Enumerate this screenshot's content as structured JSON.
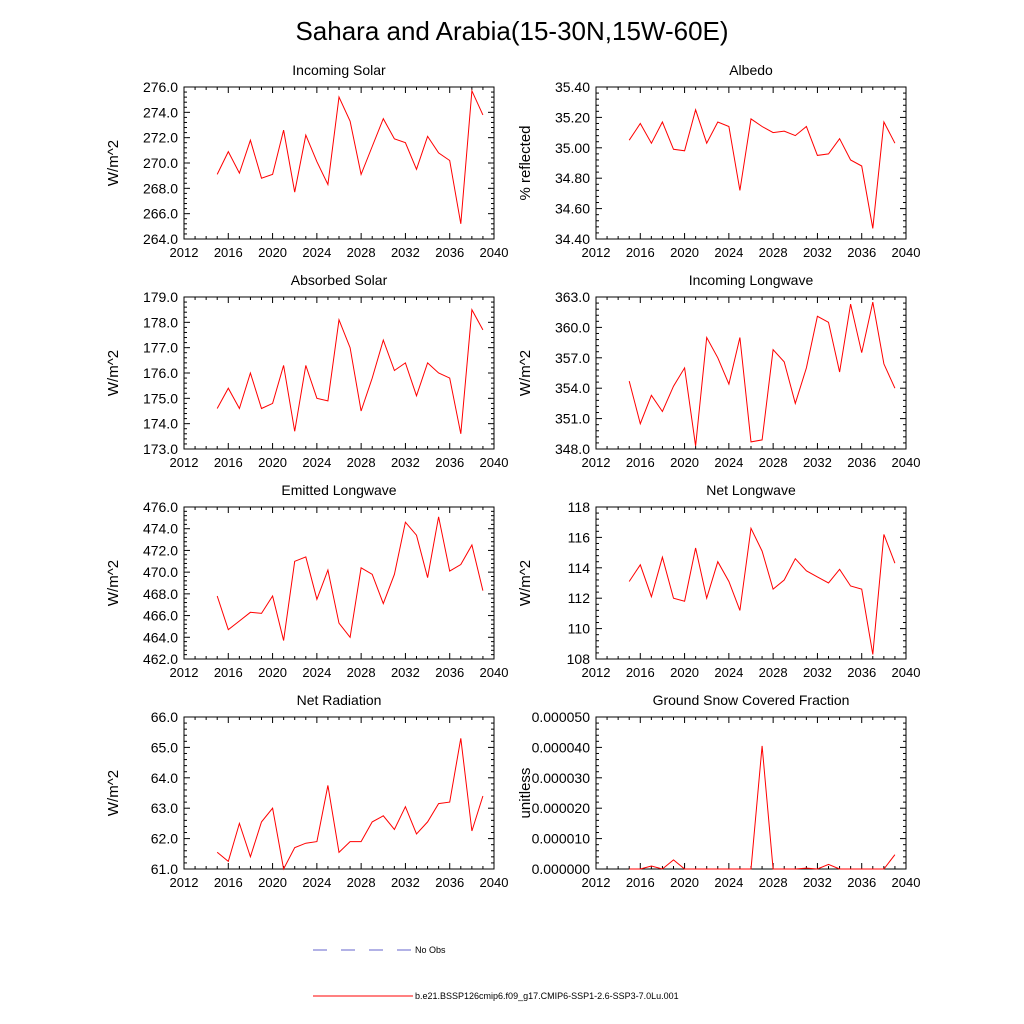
{
  "figure": {
    "title": "Sahara and Arabia(15-30N,15W-60E)"
  },
  "colors": {
    "series": "#ff0000",
    "obs": "#6666cc",
    "axis": "#000000"
  },
  "legend": [
    {
      "label": "No Obs",
      "style": "dashed"
    },
    {
      "label": "b.e21.BSSP126cmip6.f09_g17.CMIP6-SSP1-2.6-SSP3-7.0Lu.001",
      "style": "solid"
    }
  ],
  "chart_data": [
    {
      "type": "line",
      "title": "Incoming Solar",
      "ylabel": "W/m^2",
      "xlim": [
        2012,
        2040
      ],
      "ylim": [
        264,
        276
      ],
      "xticks": [
        "2012",
        "2016",
        "2020",
        "2024",
        "2028",
        "2032",
        "2036",
        "2040"
      ],
      "yticks": [
        "264.0",
        "266.0",
        "268.0",
        "270.0",
        "272.0",
        "274.0",
        "276.0"
      ],
      "x": [
        2015,
        2016,
        2017,
        2018,
        2019,
        2020,
        2021,
        2022,
        2023,
        2024,
        2025,
        2026,
        2027,
        2028,
        2029,
        2030,
        2031,
        2032,
        2033,
        2034,
        2035,
        2036,
        2037,
        2038,
        2039
      ],
      "series": [
        {
          "values": [
            269.1,
            270.9,
            269.2,
            271.8,
            268.8,
            269.1,
            272.6,
            267.7,
            272.2,
            270.1,
            268.3,
            275.2,
            273.3,
            269.1,
            271.3,
            273.5,
            271.9,
            271.6,
            269.5,
            272.1,
            270.8,
            270.2,
            265.2,
            275.7,
            273.8
          ]
        }
      ]
    },
    {
      "type": "line",
      "title": "Albedo",
      "ylabel": "% reflected",
      "xlim": [
        2012,
        2040
      ],
      "ylim": [
        34.4,
        35.4
      ],
      "xticks": [
        "2012",
        "2016",
        "2020",
        "2024",
        "2028",
        "2032",
        "2036",
        "2040"
      ],
      "yticks": [
        "34.40",
        "34.60",
        "34.80",
        "35.00",
        "35.20",
        "35.40"
      ],
      "x": [
        2015,
        2016,
        2017,
        2018,
        2019,
        2020,
        2021,
        2022,
        2023,
        2024,
        2025,
        2026,
        2027,
        2028,
        2029,
        2030,
        2031,
        2032,
        2033,
        2034,
        2035,
        2036,
        2037,
        2038,
        2039
      ],
      "series": [
        {
          "values": [
            35.05,
            35.16,
            35.03,
            35.17,
            34.99,
            34.98,
            35.25,
            35.03,
            35.17,
            35.14,
            34.72,
            35.19,
            35.14,
            35.1,
            35.11,
            35.08,
            35.14,
            34.95,
            34.96,
            35.06,
            34.92,
            34.88,
            34.47,
            35.17,
            35.03
          ]
        }
      ]
    },
    {
      "type": "line",
      "title": "Absorbed Solar",
      "ylabel": "W/m^2",
      "xlim": [
        2012,
        2040
      ],
      "ylim": [
        173,
        179
      ],
      "xticks": [
        "2012",
        "2016",
        "2020",
        "2024",
        "2028",
        "2032",
        "2036",
        "2040"
      ],
      "yticks": [
        "173.0",
        "174.0",
        "175.0",
        "176.0",
        "177.0",
        "178.0",
        "179.0"
      ],
      "x": [
        2015,
        2016,
        2017,
        2018,
        2019,
        2020,
        2021,
        2022,
        2023,
        2024,
        2025,
        2026,
        2027,
        2028,
        2029,
        2030,
        2031,
        2032,
        2033,
        2034,
        2035,
        2036,
        2037,
        2038,
        2039
      ],
      "series": [
        {
          "values": [
            174.6,
            175.4,
            174.6,
            176.0,
            174.6,
            174.8,
            176.3,
            173.7,
            176.3,
            175.0,
            174.9,
            178.1,
            177.0,
            174.5,
            175.8,
            177.3,
            176.1,
            176.4,
            175.1,
            176.4,
            176.0,
            175.8,
            173.6,
            178.5,
            177.7
          ]
        }
      ]
    },
    {
      "type": "line",
      "title": "Incoming Longwave",
      "ylabel": "W/m^2",
      "xlim": [
        2012,
        2040
      ],
      "ylim": [
        348,
        363
      ],
      "xticks": [
        "2012",
        "2016",
        "2020",
        "2024",
        "2028",
        "2032",
        "2036",
        "2040"
      ],
      "yticks": [
        "348.0",
        "351.0",
        "354.0",
        "357.0",
        "360.0",
        "363.0"
      ],
      "x": [
        2015,
        2016,
        2017,
        2018,
        2019,
        2020,
        2021,
        2022,
        2023,
        2024,
        2025,
        2026,
        2027,
        2028,
        2029,
        2030,
        2031,
        2032,
        2033,
        2034,
        2035,
        2036,
        2037,
        2038,
        2039
      ],
      "series": [
        {
          "values": [
            354.7,
            350.5,
            353.3,
            351.7,
            354.2,
            356.0,
            348.3,
            359.0,
            357.0,
            354.4,
            359.0,
            348.7,
            348.9,
            357.8,
            356.6,
            352.5,
            356.0,
            361.1,
            360.5,
            355.6,
            362.3,
            357.5,
            362.5,
            356.4,
            354.0
          ]
        }
      ]
    },
    {
      "type": "line",
      "title": "Emitted Longwave",
      "ylabel": "W/m^2",
      "xlim": [
        2012,
        2040
      ],
      "ylim": [
        462,
        476
      ],
      "xticks": [
        "2012",
        "2016",
        "2020",
        "2024",
        "2028",
        "2032",
        "2036",
        "2040"
      ],
      "yticks": [
        "462.0",
        "464.0",
        "466.0",
        "468.0",
        "470.0",
        "472.0",
        "474.0",
        "476.0"
      ],
      "x": [
        2015,
        2016,
        2017,
        2018,
        2019,
        2020,
        2021,
        2022,
        2023,
        2024,
        2025,
        2026,
        2027,
        2028,
        2029,
        2030,
        2031,
        2032,
        2033,
        2034,
        2035,
        2036,
        2037,
        2038,
        2039
      ],
      "series": [
        {
          "values": [
            467.8,
            464.7,
            465.5,
            466.3,
            466.2,
            467.8,
            463.7,
            471.0,
            471.4,
            467.5,
            470.2,
            465.3,
            464.0,
            470.4,
            469.8,
            467.1,
            469.8,
            474.6,
            473.4,
            469.5,
            475.1,
            470.1,
            470.7,
            472.5,
            468.3
          ]
        }
      ]
    },
    {
      "type": "line",
      "title": "Net Longwave",
      "ylabel": "W/m^2",
      "xlim": [
        2012,
        2040
      ],
      "ylim": [
        108,
        118
      ],
      "xticks": [
        "2012",
        "2016",
        "2020",
        "2024",
        "2028",
        "2032",
        "2036",
        "2040"
      ],
      "yticks": [
        "108",
        "110",
        "112",
        "114",
        "116",
        "118"
      ],
      "x": [
        2015,
        2016,
        2017,
        2018,
        2019,
        2020,
        2021,
        2022,
        2023,
        2024,
        2025,
        2026,
        2027,
        2028,
        2029,
        2030,
        2031,
        2032,
        2033,
        2034,
        2035,
        2036,
        2037,
        2038,
        2039
      ],
      "series": [
        {
          "values": [
            113.1,
            114.2,
            112.1,
            114.7,
            112.0,
            111.8,
            115.3,
            112.0,
            114.4,
            113.1,
            111.2,
            116.6,
            115.1,
            112.6,
            113.2,
            114.6,
            113.8,
            113.4,
            113.0,
            113.9,
            112.8,
            112.6,
            108.3,
            116.2,
            114.3
          ]
        }
      ]
    },
    {
      "type": "line",
      "title": "Net Radiation",
      "ylabel": "W/m^2",
      "xlim": [
        2012,
        2040
      ],
      "ylim": [
        61,
        66
      ],
      "xticks": [
        "2012",
        "2016",
        "2020",
        "2024",
        "2028",
        "2032",
        "2036",
        "2040"
      ],
      "yticks": [
        "61.0",
        "62.0",
        "63.0",
        "64.0",
        "65.0",
        "66.0"
      ],
      "x": [
        2015,
        2016,
        2017,
        2018,
        2019,
        2020,
        2021,
        2022,
        2023,
        2024,
        2025,
        2026,
        2027,
        2028,
        2029,
        2030,
        2031,
        2032,
        2033,
        2034,
        2035,
        2036,
        2037,
        2038,
        2039
      ],
      "series": [
        {
          "values": [
            61.55,
            61.25,
            62.5,
            61.4,
            62.55,
            63.0,
            61.0,
            61.7,
            61.85,
            61.9,
            63.75,
            61.55,
            61.9,
            61.9,
            62.55,
            62.75,
            62.3,
            63.05,
            62.15,
            62.55,
            63.15,
            63.2,
            65.3,
            62.25,
            63.4
          ]
        }
      ]
    },
    {
      "type": "line",
      "title": "Ground Snow Covered Fraction",
      "ylabel": "unitless",
      "xlim": [
        2012,
        2040
      ],
      "ylim": [
        0,
        5e-05
      ],
      "xticks": [
        "2012",
        "2016",
        "2020",
        "2024",
        "2028",
        "2032",
        "2036",
        "2040"
      ],
      "yticks": [
        "0.000000",
        "0.000010",
        "0.000020",
        "0.000030",
        "0.000040",
        "0.000050"
      ],
      "x": [
        2015,
        2016,
        2017,
        2018,
        2019,
        2020,
        2021,
        2022,
        2023,
        2024,
        2025,
        2026,
        2027,
        2028,
        2029,
        2030,
        2031,
        2032,
        2033,
        2034,
        2035,
        2036,
        2037,
        2038,
        2039
      ],
      "series": [
        {
          "values": [
            0,
            0,
            1e-06,
            0,
            3e-06,
            0,
            0,
            0,
            0,
            0,
            0,
            0,
            4.05e-05,
            0,
            0,
            0,
            3e-07,
            0,
            1.5e-06,
            0,
            0,
            0,
            0,
            0,
            4.7e-06
          ]
        }
      ]
    }
  ]
}
